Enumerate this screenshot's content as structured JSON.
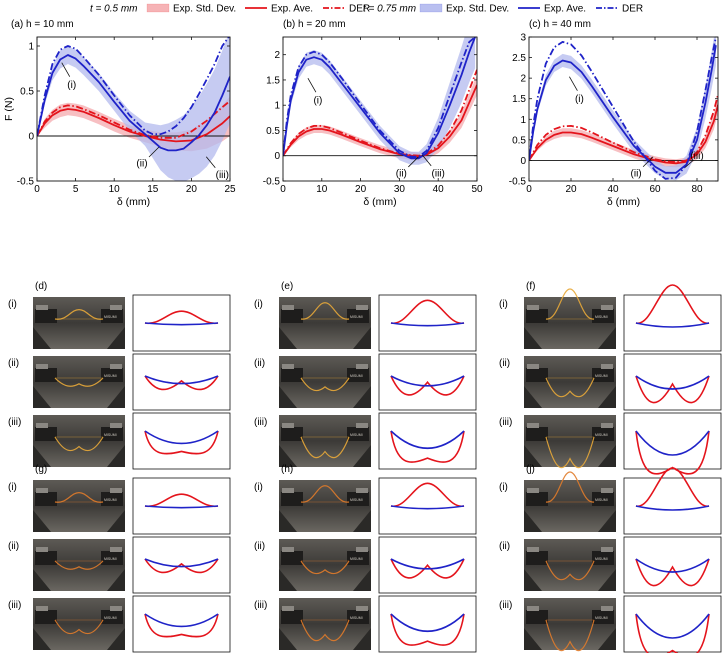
{
  "legend": {
    "groups": [
      {
        "thickness": "t = 0.5 mm",
        "std": "Exp. Std. Dev.",
        "ave": "Exp. Ave.",
        "der": "DER",
        "color": "#e4141c",
        "fill": "#f6b3b6"
      },
      {
        "thickness": "t = 0.75 mm",
        "std": "Exp. Std. Dev.",
        "ave": "Exp. Ave.",
        "der": "DER",
        "color": "#1f23c8",
        "fill": "#b9bff0"
      }
    ]
  },
  "chart_data": [
    {
      "type": "line",
      "title": "(a)  h = 10 mm",
      "xlabel": "δ (mm)",
      "ylabel": "F (N)",
      "xlim": [
        0,
        25
      ],
      "ylim": [
        -0.5,
        1.1
      ],
      "xticks": [
        "0",
        "5",
        "10",
        "15",
        "20",
        "25"
      ],
      "xtick_values": [
        0,
        5,
        10,
        15,
        20,
        25
      ],
      "yticks": [
        "-0.5",
        "0",
        "0.5",
        "1"
      ],
      "ytick_values": [
        -0.5,
        0,
        0.5,
        1
      ],
      "series": [
        {
          "name": "t = 0.5 mm Exp. Ave.",
          "color": "#e4141c",
          "style": "solid",
          "x": [
            0,
            1,
            2,
            3,
            4,
            5,
            6,
            8,
            10,
            12,
            14,
            16,
            18,
            20,
            22,
            24,
            25
          ],
          "y": [
            0,
            0.14,
            0.23,
            0.28,
            0.3,
            0.29,
            0.27,
            0.2,
            0.12,
            0.05,
            0,
            -0.04,
            -0.06,
            -0.05,
            0.02,
            0.14,
            0.22
          ],
          "band": [
            0,
            0.05,
            0.06,
            0.07,
            0.07,
            0.07,
            0.07,
            0.07,
            0.07,
            0.07,
            0.07,
            0.08,
            0.1,
            0.12,
            0.16,
            0.2,
            0.22
          ]
        },
        {
          "name": "t = 0.5 mm DER",
          "color": "#e4141c",
          "style": "dashdot",
          "x": [
            0,
            1,
            2,
            3,
            4,
            5,
            6,
            8,
            10,
            12,
            14,
            16,
            18,
            20,
            22,
            24,
            25
          ],
          "y": [
            0,
            0.16,
            0.26,
            0.32,
            0.34,
            0.33,
            0.3,
            0.23,
            0.15,
            0.07,
            0.01,
            -0.02,
            -0.02,
            0.05,
            0.17,
            0.32,
            0.39
          ]
        },
        {
          "name": "t = 0.75 mm Exp. Ave.",
          "color": "#1f23c8",
          "style": "solid",
          "x": [
            0,
            1,
            2,
            3,
            4,
            5,
            6,
            8,
            10,
            12,
            14,
            16,
            17,
            18,
            19,
            20,
            21,
            22,
            23,
            24,
            25
          ],
          "y": [
            0,
            0.4,
            0.7,
            0.85,
            0.9,
            0.86,
            0.78,
            0.6,
            0.38,
            0.17,
            0.02,
            -0.13,
            -0.16,
            -0.16,
            -0.14,
            -0.07,
            0.01,
            0.12,
            0.26,
            0.45,
            0.66
          ],
          "band": [
            0,
            0.05,
            0.08,
            0.1,
            0.1,
            0.1,
            0.1,
            0.1,
            0.1,
            0.11,
            0.13,
            0.25,
            0.3,
            0.34,
            0.37,
            0.4,
            0.43,
            0.46,
            0.48,
            0.5,
            0.52
          ]
        },
        {
          "name": "t = 0.75 mm DER",
          "color": "#1f23c8",
          "style": "dashdot",
          "x": [
            0,
            1,
            2,
            3,
            4,
            5,
            6,
            8,
            10,
            12,
            14,
            15,
            16,
            17,
            18,
            19,
            20,
            21,
            22,
            23,
            24,
            25
          ],
          "y": [
            0,
            0.45,
            0.8,
            0.96,
            1.0,
            0.97,
            0.88,
            0.68,
            0.45,
            0.23,
            0.06,
            0.02,
            0.02,
            0.05,
            0.11,
            0.2,
            0.32,
            0.47,
            0.63,
            0.8,
            1.0,
            1.12
          ]
        }
      ],
      "annotations": [
        {
          "text": "(i)",
          "x": 4.5,
          "y": 0.57
        },
        {
          "text": "(ii)",
          "x": 13.6,
          "y": -0.3
        },
        {
          "text": "(iii)",
          "x": 24,
          "y": -0.43
        }
      ]
    },
    {
      "type": "line",
      "title": "(b)  h = 20 mm",
      "xlabel": "δ (mm)",
      "ylabel": "",
      "xlim": [
        0,
        50
      ],
      "ylim": [
        -0.5,
        2.35
      ],
      "xticks": [
        "0",
        "10",
        "20",
        "30",
        "40",
        "50"
      ],
      "xtick_values": [
        0,
        10,
        20,
        30,
        40,
        50
      ],
      "yticks": [
        "-0.5",
        "0",
        "0.5",
        "1",
        "1.5",
        "2"
      ],
      "ytick_values": [
        -0.5,
        0,
        0.5,
        1,
        1.5,
        2
      ],
      "series": [
        {
          "name": "t = 0.5 mm Exp. Ave.",
          "color": "#e4141c",
          "style": "solid",
          "x": [
            0,
            2,
            4,
            6,
            8,
            10,
            12,
            15,
            20,
            25,
            30,
            33,
            35,
            37,
            40,
            43,
            46,
            48,
            50
          ],
          "y": [
            0,
            0.22,
            0.38,
            0.48,
            0.53,
            0.53,
            0.5,
            0.42,
            0.27,
            0.13,
            0.03,
            0,
            -0.02,
            0.02,
            0.15,
            0.38,
            0.7,
            1.05,
            1.4
          ],
          "band": [
            0,
            0.05,
            0.07,
            0.08,
            0.08,
            0.08,
            0.08,
            0.08,
            0.08,
            0.08,
            0.08,
            0.08,
            0.08,
            0.09,
            0.1,
            0.12,
            0.15,
            0.18,
            0.2
          ]
        },
        {
          "name": "t = 0.5 mm DER",
          "color": "#e4141c",
          "style": "dashdot",
          "x": [
            0,
            2,
            4,
            6,
            8,
            10,
            12,
            15,
            20,
            25,
            30,
            33,
            35,
            37,
            40,
            43,
            46,
            48,
            50
          ],
          "y": [
            0,
            0.25,
            0.43,
            0.54,
            0.59,
            0.59,
            0.55,
            0.46,
            0.3,
            0.15,
            0.04,
            0.01,
            0,
            0.04,
            0.2,
            0.48,
            0.9,
            1.3,
            1.7
          ]
        },
        {
          "name": "t = 0.75 mm Exp. Ave.",
          "color": "#1f23c8",
          "style": "solid",
          "x": [
            0,
            1,
            2,
            4,
            6,
            8,
            10,
            12,
            15,
            20,
            25,
            30,
            33,
            35,
            37,
            40,
            43,
            46,
            48,
            49.5
          ],
          "y": [
            0,
            0.6,
            1.1,
            1.65,
            1.9,
            1.95,
            1.9,
            1.75,
            1.45,
            0.95,
            0.45,
            0.05,
            -0.05,
            -0.05,
            0.05,
            0.45,
            1.0,
            1.6,
            2.05,
            2.35
          ],
          "band": [
            0,
            0.06,
            0.1,
            0.13,
            0.14,
            0.14,
            0.14,
            0.14,
            0.14,
            0.14,
            0.14,
            0.14,
            0.13,
            0.13,
            0.18,
            0.3,
            0.45,
            0.55,
            0.6,
            0.62
          ]
        },
        {
          "name": "t = 0.75 mm DER",
          "color": "#1f23c8",
          "style": "dashdot",
          "x": [
            0,
            1,
            2,
            4,
            6,
            8,
            10,
            12,
            15,
            20,
            25,
            30,
            33,
            35,
            37,
            40,
            43,
            46,
            48,
            49.5
          ],
          "y": [
            0,
            0.7,
            1.2,
            1.75,
            2.0,
            2.06,
            2.0,
            1.85,
            1.55,
            1.02,
            0.5,
            0.1,
            -0.02,
            -0.02,
            0.1,
            0.55,
            1.2,
            1.85,
            2.25,
            2.35
          ]
        }
      ],
      "annotations": [
        {
          "text": "(i)",
          "x": 9,
          "y": 1.1
        },
        {
          "text": "(ii)",
          "x": 30.5,
          "y": -0.34
        },
        {
          "text": "(iii)",
          "x": 40,
          "y": -0.34
        }
      ]
    },
    {
      "type": "line",
      "title": "(c)  h = 40 mm",
      "xlabel": "δ (mm)",
      "ylabel": "",
      "xlim": [
        0,
        90
      ],
      "ylim": [
        -0.5,
        3.0
      ],
      "xticks": [
        "0",
        "20",
        "40",
        "60",
        "80"
      ],
      "xtick_values": [
        0,
        20,
        40,
        60,
        80
      ],
      "yticks": [
        "-0.5",
        "0",
        "0.5",
        "1",
        "1.5",
        "2",
        "2.5",
        "3"
      ],
      "ytick_values": [
        -0.5,
        0,
        0.5,
        1,
        1.5,
        2,
        2.5,
        3
      ],
      "series": [
        {
          "name": "t = 0.5 mm Exp. Ave.",
          "color": "#e4141c",
          "style": "solid",
          "x": [
            0,
            4,
            8,
            12,
            16,
            20,
            25,
            30,
            40,
            50,
            60,
            65,
            70,
            75,
            80,
            84,
            88,
            90
          ],
          "y": [
            0,
            0.3,
            0.5,
            0.62,
            0.68,
            0.68,
            0.64,
            0.55,
            0.35,
            0.15,
            0,
            -0.05,
            -0.07,
            -0.03,
            0.15,
            0.45,
            0.95,
            1.35
          ],
          "band": [
            0,
            0.06,
            0.08,
            0.1,
            0.1,
            0.1,
            0.1,
            0.1,
            0.1,
            0.1,
            0.1,
            0.1,
            0.1,
            0.1,
            0.12,
            0.15,
            0.2,
            0.22
          ]
        },
        {
          "name": "t = 0.5 mm DER",
          "color": "#e4141c",
          "style": "dashdot",
          "x": [
            0,
            4,
            8,
            12,
            16,
            20,
            25,
            30,
            40,
            50,
            60,
            65,
            70,
            75,
            80,
            84,
            88,
            90
          ],
          "y": [
            0,
            0.38,
            0.62,
            0.76,
            0.83,
            0.84,
            0.79,
            0.68,
            0.43,
            0.2,
            0.03,
            -0.02,
            -0.04,
            0,
            0.2,
            0.6,
            1.2,
            1.6
          ]
        },
        {
          "name": "t = 0.75 mm Exp. Ave.",
          "color": "#1f23c8",
          "style": "solid",
          "x": [
            0,
            2,
            4,
            8,
            12,
            16,
            20,
            25,
            30,
            40,
            50,
            55,
            60,
            65,
            70,
            75,
            80,
            84,
            87,
            89
          ],
          "y": [
            0,
            0.7,
            1.25,
            1.95,
            2.3,
            2.43,
            2.38,
            2.15,
            1.8,
            1.05,
            0.35,
            0.1,
            -0.15,
            -0.3,
            -0.3,
            -0.1,
            0.5,
            1.4,
            2.2,
            2.8
          ],
          "band": [
            0,
            0.08,
            0.1,
            0.13,
            0.15,
            0.16,
            0.16,
            0.16,
            0.16,
            0.16,
            0.16,
            0.16,
            0.16,
            0.16,
            0.18,
            0.22,
            0.3,
            0.38,
            0.45,
            0.5
          ]
        },
        {
          "name": "t = 0.75 mm DER",
          "color": "#1f23c8",
          "style": "dashdot",
          "x": [
            0,
            2,
            4,
            8,
            12,
            16,
            20,
            25,
            30,
            40,
            50,
            55,
            60,
            65,
            70,
            75,
            80,
            84,
            87,
            89
          ],
          "y": [
            0,
            0.85,
            1.5,
            2.35,
            2.75,
            2.88,
            2.82,
            2.55,
            2.15,
            1.3,
            0.45,
            0.1,
            -0.25,
            -0.45,
            -0.42,
            -0.1,
            0.7,
            1.7,
            2.5,
            3.0
          ]
        }
      ],
      "annotations": [
        {
          "text": "(i)",
          "x": 24,
          "y": 1.5
        },
        {
          "text": "(ii)",
          "x": 51,
          "y": -0.3
        },
        {
          "text": "(iii)",
          "x": 80,
          "y": 0.12
        }
      ]
    }
  ],
  "config_panels": [
    {
      "label": "(d)",
      "color": "#e8a838",
      "scale": 0.23
    },
    {
      "label": "(e)",
      "color": "#e8a838",
      "scale": 0.55
    },
    {
      "label": "(f)",
      "color": "#e8a838",
      "scale": 1.0
    },
    {
      "label": "(g)",
      "color": "#e07b2a",
      "scale": 0.23
    },
    {
      "label": "(h)",
      "color": "#e07b2a",
      "scale": 0.55
    },
    {
      "label": "(j)",
      "color": "#e07b2a",
      "scale": 1.0
    }
  ],
  "row_labels": [
    "(i)",
    "(ii)",
    "(iii)"
  ],
  "photo_text": [
    "MISUMI",
    "MISUMI"
  ],
  "colors": {
    "red": "#e4141c",
    "blue": "#1f23c8"
  }
}
